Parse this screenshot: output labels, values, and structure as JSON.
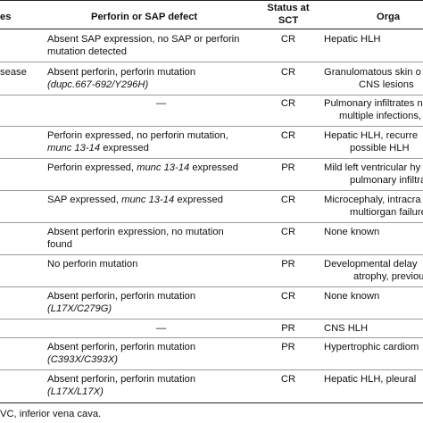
{
  "header": {
    "col1": "es",
    "col2": "Perforin or SAP defect",
    "col3_line1": "Status at",
    "col3_line2": "SCT",
    "col4": "Orga"
  },
  "rows": [
    {
      "c1": "",
      "c2a": "Absent SAP expression, no SAP or perforin",
      "c2b": "mutation detected",
      "c3": "CR",
      "c4a": "Hepatic HLH",
      "c4b": ""
    },
    {
      "c1": "sease",
      "c2a": "Absent perforin, perforin mutation",
      "c2b": "(dupc.667-692/Y296H)",
      "c3": "CR",
      "c4a": "Granulomatous skin o",
      "c4b": "CNS lesions"
    },
    {
      "c1": "",
      "c2a": "—",
      "c2b": "",
      "c3": "CR",
      "c4a": "Pulmonary infiltrates n",
      "c4b": "multiple infections, "
    },
    {
      "c1": "",
      "c2a": "Perforin expressed, no perforin mutation,",
      "c2b": "munc 13-14 expressed",
      "c3": "CR",
      "c4a": "Hepatic HLH, recurre",
      "c4b": "possible HLH"
    },
    {
      "c1": "",
      "c2a": "Perforin expressed, munc 13-14 expressed",
      "c2b": "",
      "c3": "PR",
      "c4a": "Mild left ventricular hy",
      "c4b": "pulmonary infiltrate"
    },
    {
      "c1": "",
      "c2a": "SAP expressed, munc 13-14 expressed",
      "c2b": "",
      "c3": "CR",
      "c4a": "Microcephaly, intracra",
      "c4b": "multiorgan failure re"
    },
    {
      "c1": "",
      "c2a": "Absent perforin expression, no mutation",
      "c2b": "found",
      "c3": "CR",
      "c4a": "None known",
      "c4b": ""
    },
    {
      "c1": "",
      "c2a": "No perforin mutation",
      "c2b": "",
      "c3": "PR",
      "c4a": "Developmental delay",
      "c4b": "atrophy, previous S"
    },
    {
      "c1": "",
      "c2a": "Absent perforin, perforin mutation",
      "c2b": "(L17X/C279G)",
      "c3": "CR",
      "c4a": "None known",
      "c4b": ""
    },
    {
      "c1": "",
      "c2a": "—",
      "c2b": "",
      "c3": "PR",
      "c4a": "CNS HLH",
      "c4b": ""
    },
    {
      "c1": "",
      "c2a": "Absent perforin, perforin mutation",
      "c2b": "(C393X/C393X)",
      "c3": "PR",
      "c4a": "Hypertrophic cardiom",
      "c4b": ""
    },
    {
      "c1": "",
      "c2a": "Absent perforin, perforin mutation",
      "c2b": "(L17X/L17X)",
      "c3": "CR",
      "c4a": "Hepatic HLH, pleural",
      "c4b": ""
    }
  ],
  "footnote": "VC, inferior vena cava."
}
